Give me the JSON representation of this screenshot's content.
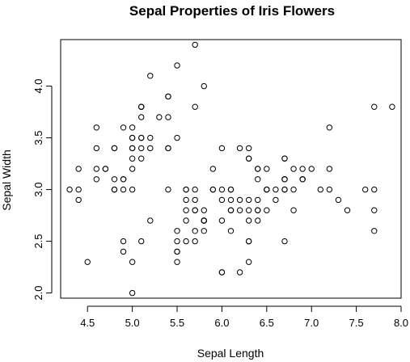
{
  "chart_data": {
    "type": "scatter",
    "title": "Sepal Properties of Iris Flowers",
    "xlabel": "Sepal Length",
    "ylabel": "Sepal Width",
    "xlim": [
      4.2,
      8.0
    ],
    "ylim": [
      1.95,
      4.45
    ],
    "xticks": [
      4.5,
      5.0,
      5.5,
      6.0,
      6.5,
      7.0,
      7.5,
      8.0
    ],
    "xtick_labels": [
      "4.5",
      "5.0",
      "5.5",
      "6.0",
      "6.5",
      "7.0",
      "7.5",
      "8.0"
    ],
    "yticks": [
      2.0,
      2.5,
      3.0,
      3.5,
      4.0
    ],
    "ytick_labels": [
      "2.0",
      "2.5",
      "3.0",
      "3.5",
      "4.0"
    ],
    "grid": false,
    "legend": "none",
    "marker": "open-circle",
    "points": [
      [
        5.1,
        3.5
      ],
      [
        4.9,
        3.0
      ],
      [
        4.7,
        3.2
      ],
      [
        4.6,
        3.1
      ],
      [
        5.0,
        3.6
      ],
      [
        5.4,
        3.9
      ],
      [
        4.6,
        3.4
      ],
      [
        5.0,
        3.4
      ],
      [
        4.4,
        2.9
      ],
      [
        4.9,
        3.1
      ],
      [
        5.4,
        3.7
      ],
      [
        4.8,
        3.4
      ],
      [
        4.8,
        3.0
      ],
      [
        4.3,
        3.0
      ],
      [
        5.8,
        4.0
      ],
      [
        5.7,
        4.4
      ],
      [
        5.4,
        3.9
      ],
      [
        5.1,
        3.5
      ],
      [
        5.7,
        3.8
      ],
      [
        5.1,
        3.8
      ],
      [
        5.4,
        3.4
      ],
      [
        5.1,
        3.7
      ],
      [
        4.6,
        3.6
      ],
      [
        5.1,
        3.3
      ],
      [
        4.8,
        3.4
      ],
      [
        5.0,
        3.0
      ],
      [
        5.0,
        3.4
      ],
      [
        5.2,
        3.5
      ],
      [
        5.2,
        3.4
      ],
      [
        4.7,
        3.2
      ],
      [
        4.8,
        3.1
      ],
      [
        5.4,
        3.4
      ],
      [
        5.2,
        4.1
      ],
      [
        5.5,
        4.2
      ],
      [
        4.9,
        3.1
      ],
      [
        5.0,
        3.2
      ],
      [
        5.5,
        3.5
      ],
      [
        4.9,
        3.6
      ],
      [
        4.4,
        3.0
      ],
      [
        5.1,
        3.4
      ],
      [
        5.0,
        3.5
      ],
      [
        4.5,
        2.3
      ],
      [
        4.4,
        3.2
      ],
      [
        5.0,
        3.5
      ],
      [
        5.1,
        3.8
      ],
      [
        4.8,
        3.0
      ],
      [
        5.1,
        3.8
      ],
      [
        4.6,
        3.2
      ],
      [
        5.3,
        3.7
      ],
      [
        5.0,
        3.3
      ],
      [
        7.0,
        3.2
      ],
      [
        6.4,
        3.2
      ],
      [
        6.9,
        3.1
      ],
      [
        5.5,
        2.3
      ],
      [
        6.5,
        2.8
      ],
      [
        5.7,
        2.8
      ],
      [
        6.3,
        3.3
      ],
      [
        4.9,
        2.4
      ],
      [
        6.6,
        2.9
      ],
      [
        5.2,
        2.7
      ],
      [
        5.0,
        2.0
      ],
      [
        5.9,
        3.0
      ],
      [
        6.0,
        2.2
      ],
      [
        6.1,
        2.9
      ],
      [
        5.6,
        2.9
      ],
      [
        6.7,
        3.1
      ],
      [
        5.6,
        3.0
      ],
      [
        5.8,
        2.7
      ],
      [
        6.2,
        2.2
      ],
      [
        5.6,
        2.5
      ],
      [
        5.9,
        3.2
      ],
      [
        6.1,
        2.8
      ],
      [
        6.3,
        2.5
      ],
      [
        6.1,
        2.8
      ],
      [
        6.4,
        2.9
      ],
      [
        6.6,
        3.0
      ],
      [
        6.8,
        2.8
      ],
      [
        6.7,
        3.0
      ],
      [
        6.0,
        2.9
      ],
      [
        5.7,
        2.6
      ],
      [
        5.5,
        2.4
      ],
      [
        5.5,
        2.4
      ],
      [
        5.8,
        2.7
      ],
      [
        6.0,
        2.7
      ],
      [
        5.4,
        3.0
      ],
      [
        6.0,
        3.4
      ],
      [
        6.7,
        3.1
      ],
      [
        6.3,
        2.3
      ],
      [
        5.6,
        3.0
      ],
      [
        5.5,
        2.5
      ],
      [
        5.5,
        2.6
      ],
      [
        6.1,
        3.0
      ],
      [
        5.8,
        2.6
      ],
      [
        5.0,
        2.3
      ],
      [
        5.6,
        2.7
      ],
      [
        5.7,
        3.0
      ],
      [
        5.7,
        2.9
      ],
      [
        6.2,
        2.9
      ],
      [
        5.1,
        2.5
      ],
      [
        5.7,
        2.8
      ],
      [
        6.3,
        3.3
      ],
      [
        5.8,
        2.7
      ],
      [
        7.1,
        3.0
      ],
      [
        6.3,
        2.9
      ],
      [
        6.5,
        3.0
      ],
      [
        7.6,
        3.0
      ],
      [
        4.9,
        2.5
      ],
      [
        7.3,
        2.9
      ],
      [
        6.7,
        2.5
      ],
      [
        7.2,
        3.6
      ],
      [
        6.5,
        3.2
      ],
      [
        6.4,
        2.7
      ],
      [
        6.8,
        3.0
      ],
      [
        5.7,
        2.5
      ],
      [
        5.8,
        2.8
      ],
      [
        6.4,
        3.2
      ],
      [
        6.5,
        3.0
      ],
      [
        7.7,
        3.8
      ],
      [
        7.7,
        2.6
      ],
      [
        6.0,
        2.2
      ],
      [
        6.9,
        3.2
      ],
      [
        5.6,
        2.8
      ],
      [
        7.7,
        2.8
      ],
      [
        6.3,
        2.7
      ],
      [
        6.7,
        3.3
      ],
      [
        7.2,
        3.2
      ],
      [
        6.2,
        2.8
      ],
      [
        6.1,
        3.0
      ],
      [
        6.4,
        2.8
      ],
      [
        7.2,
        3.0
      ],
      [
        7.4,
        2.8
      ],
      [
        7.9,
        3.8
      ],
      [
        6.4,
        2.8
      ],
      [
        6.3,
        2.8
      ],
      [
        6.1,
        2.6
      ],
      [
        7.7,
        3.0
      ],
      [
        6.3,
        3.4
      ],
      [
        6.4,
        3.1
      ],
      [
        6.0,
        3.0
      ],
      [
        6.9,
        3.1
      ],
      [
        6.7,
        3.1
      ],
      [
        6.9,
        3.1
      ],
      [
        5.8,
        2.7
      ],
      [
        6.8,
        3.2
      ],
      [
        6.7,
        3.3
      ],
      [
        6.7,
        3.0
      ],
      [
        6.3,
        2.5
      ],
      [
        6.5,
        3.0
      ],
      [
        6.2,
        3.4
      ],
      [
        5.9,
        3.0
      ]
    ]
  }
}
